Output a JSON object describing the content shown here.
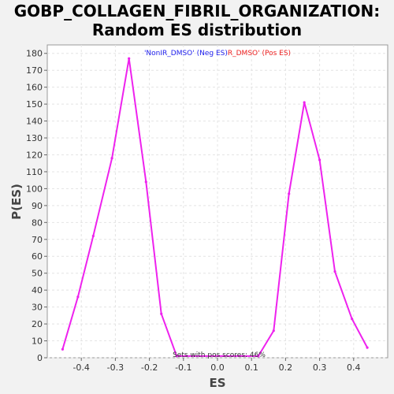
{
  "chart_data": {
    "type": "line",
    "title_line1": "GOBP_COLLAGEN_FIBRIL_ORGANIZATION:",
    "title_line2": "Random ES distribution",
    "xlabel": "ES",
    "ylabel": "P(ES)",
    "xlim": [
      -0.5,
      0.5
    ],
    "ylim": [
      0,
      185
    ],
    "x_ticks": [
      -0.4,
      -0.3,
      -0.2,
      -0.1,
      0.0,
      0.1,
      0.2,
      0.3,
      0.4
    ],
    "x_tick_labels": [
      "-0.4",
      "-0.3",
      "-0.2",
      "-0.1",
      "0.0",
      "0.1",
      "0.2",
      "0.3",
      "0.4"
    ],
    "y_ticks": [
      0,
      10,
      20,
      30,
      40,
      50,
      60,
      70,
      80,
      90,
      100,
      110,
      120,
      130,
      140,
      150,
      160,
      170,
      180
    ],
    "grid": true,
    "legend": [
      {
        "text": "'NonIR_DMSO' (Neg ES)",
        "color": "#2222ee"
      },
      {
        "text": "R_DMSO' (Pos ES)",
        "color": "#ee2222"
      }
    ],
    "annotation": "Sets with pos scores: 46%",
    "series": [
      {
        "color": "#ee22ee",
        "x": [
          -0.455,
          -0.41,
          -0.365,
          -0.31,
          -0.26,
          -0.21,
          -0.165,
          -0.12,
          0.12,
          0.165,
          0.21,
          0.255,
          0.3,
          0.345,
          0.395,
          0.44
        ],
        "y": [
          5,
          36,
          72,
          118,
          177,
          104,
          26,
          1,
          1,
          16,
          97,
          151,
          117,
          51,
          23,
          6
        ]
      }
    ]
  }
}
